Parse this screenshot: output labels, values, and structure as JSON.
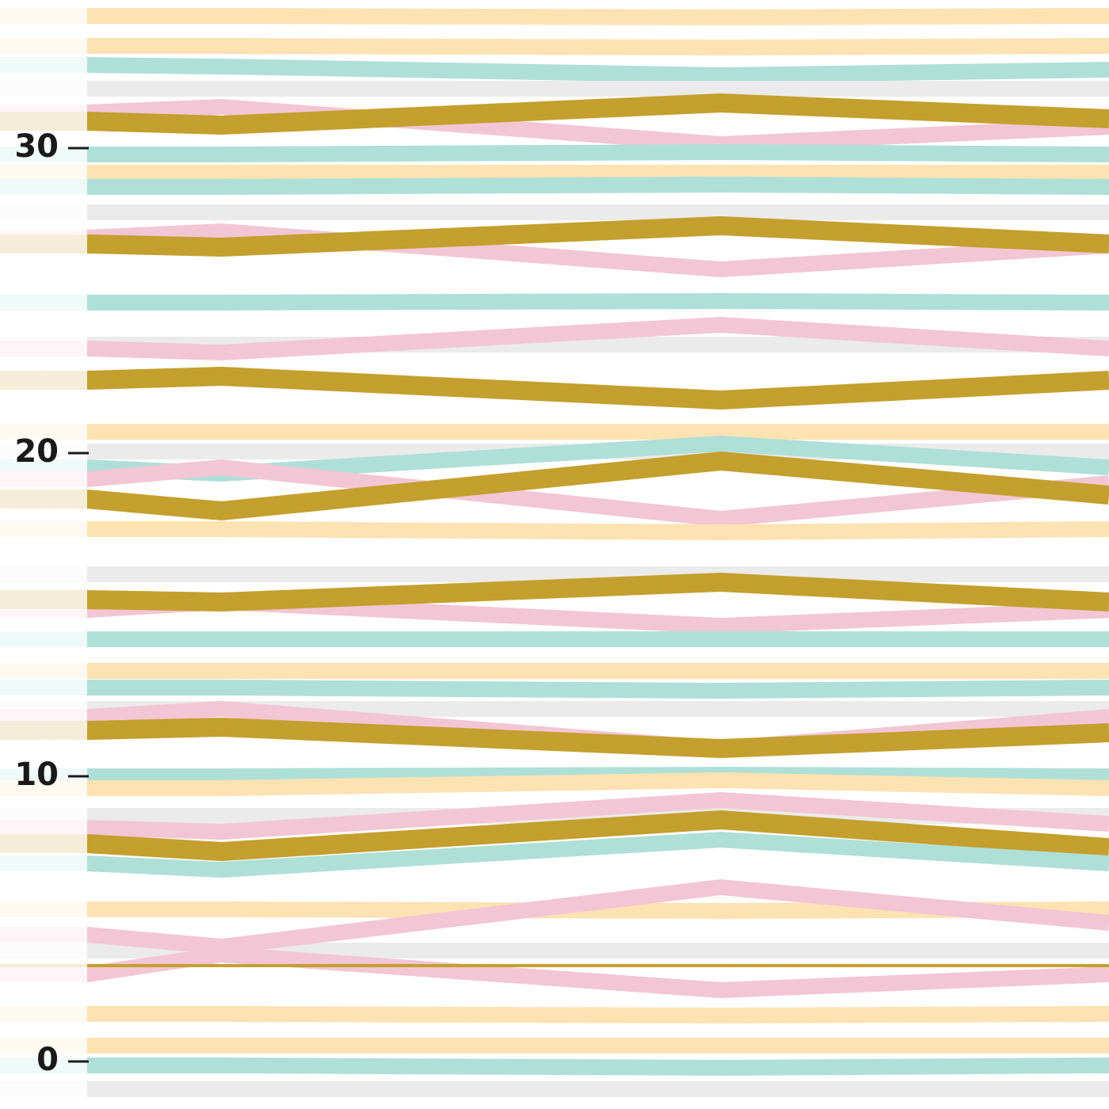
{
  "ruler": {
    "labels": [
      "30",
      "20",
      "10",
      "0"
    ]
  }
}
